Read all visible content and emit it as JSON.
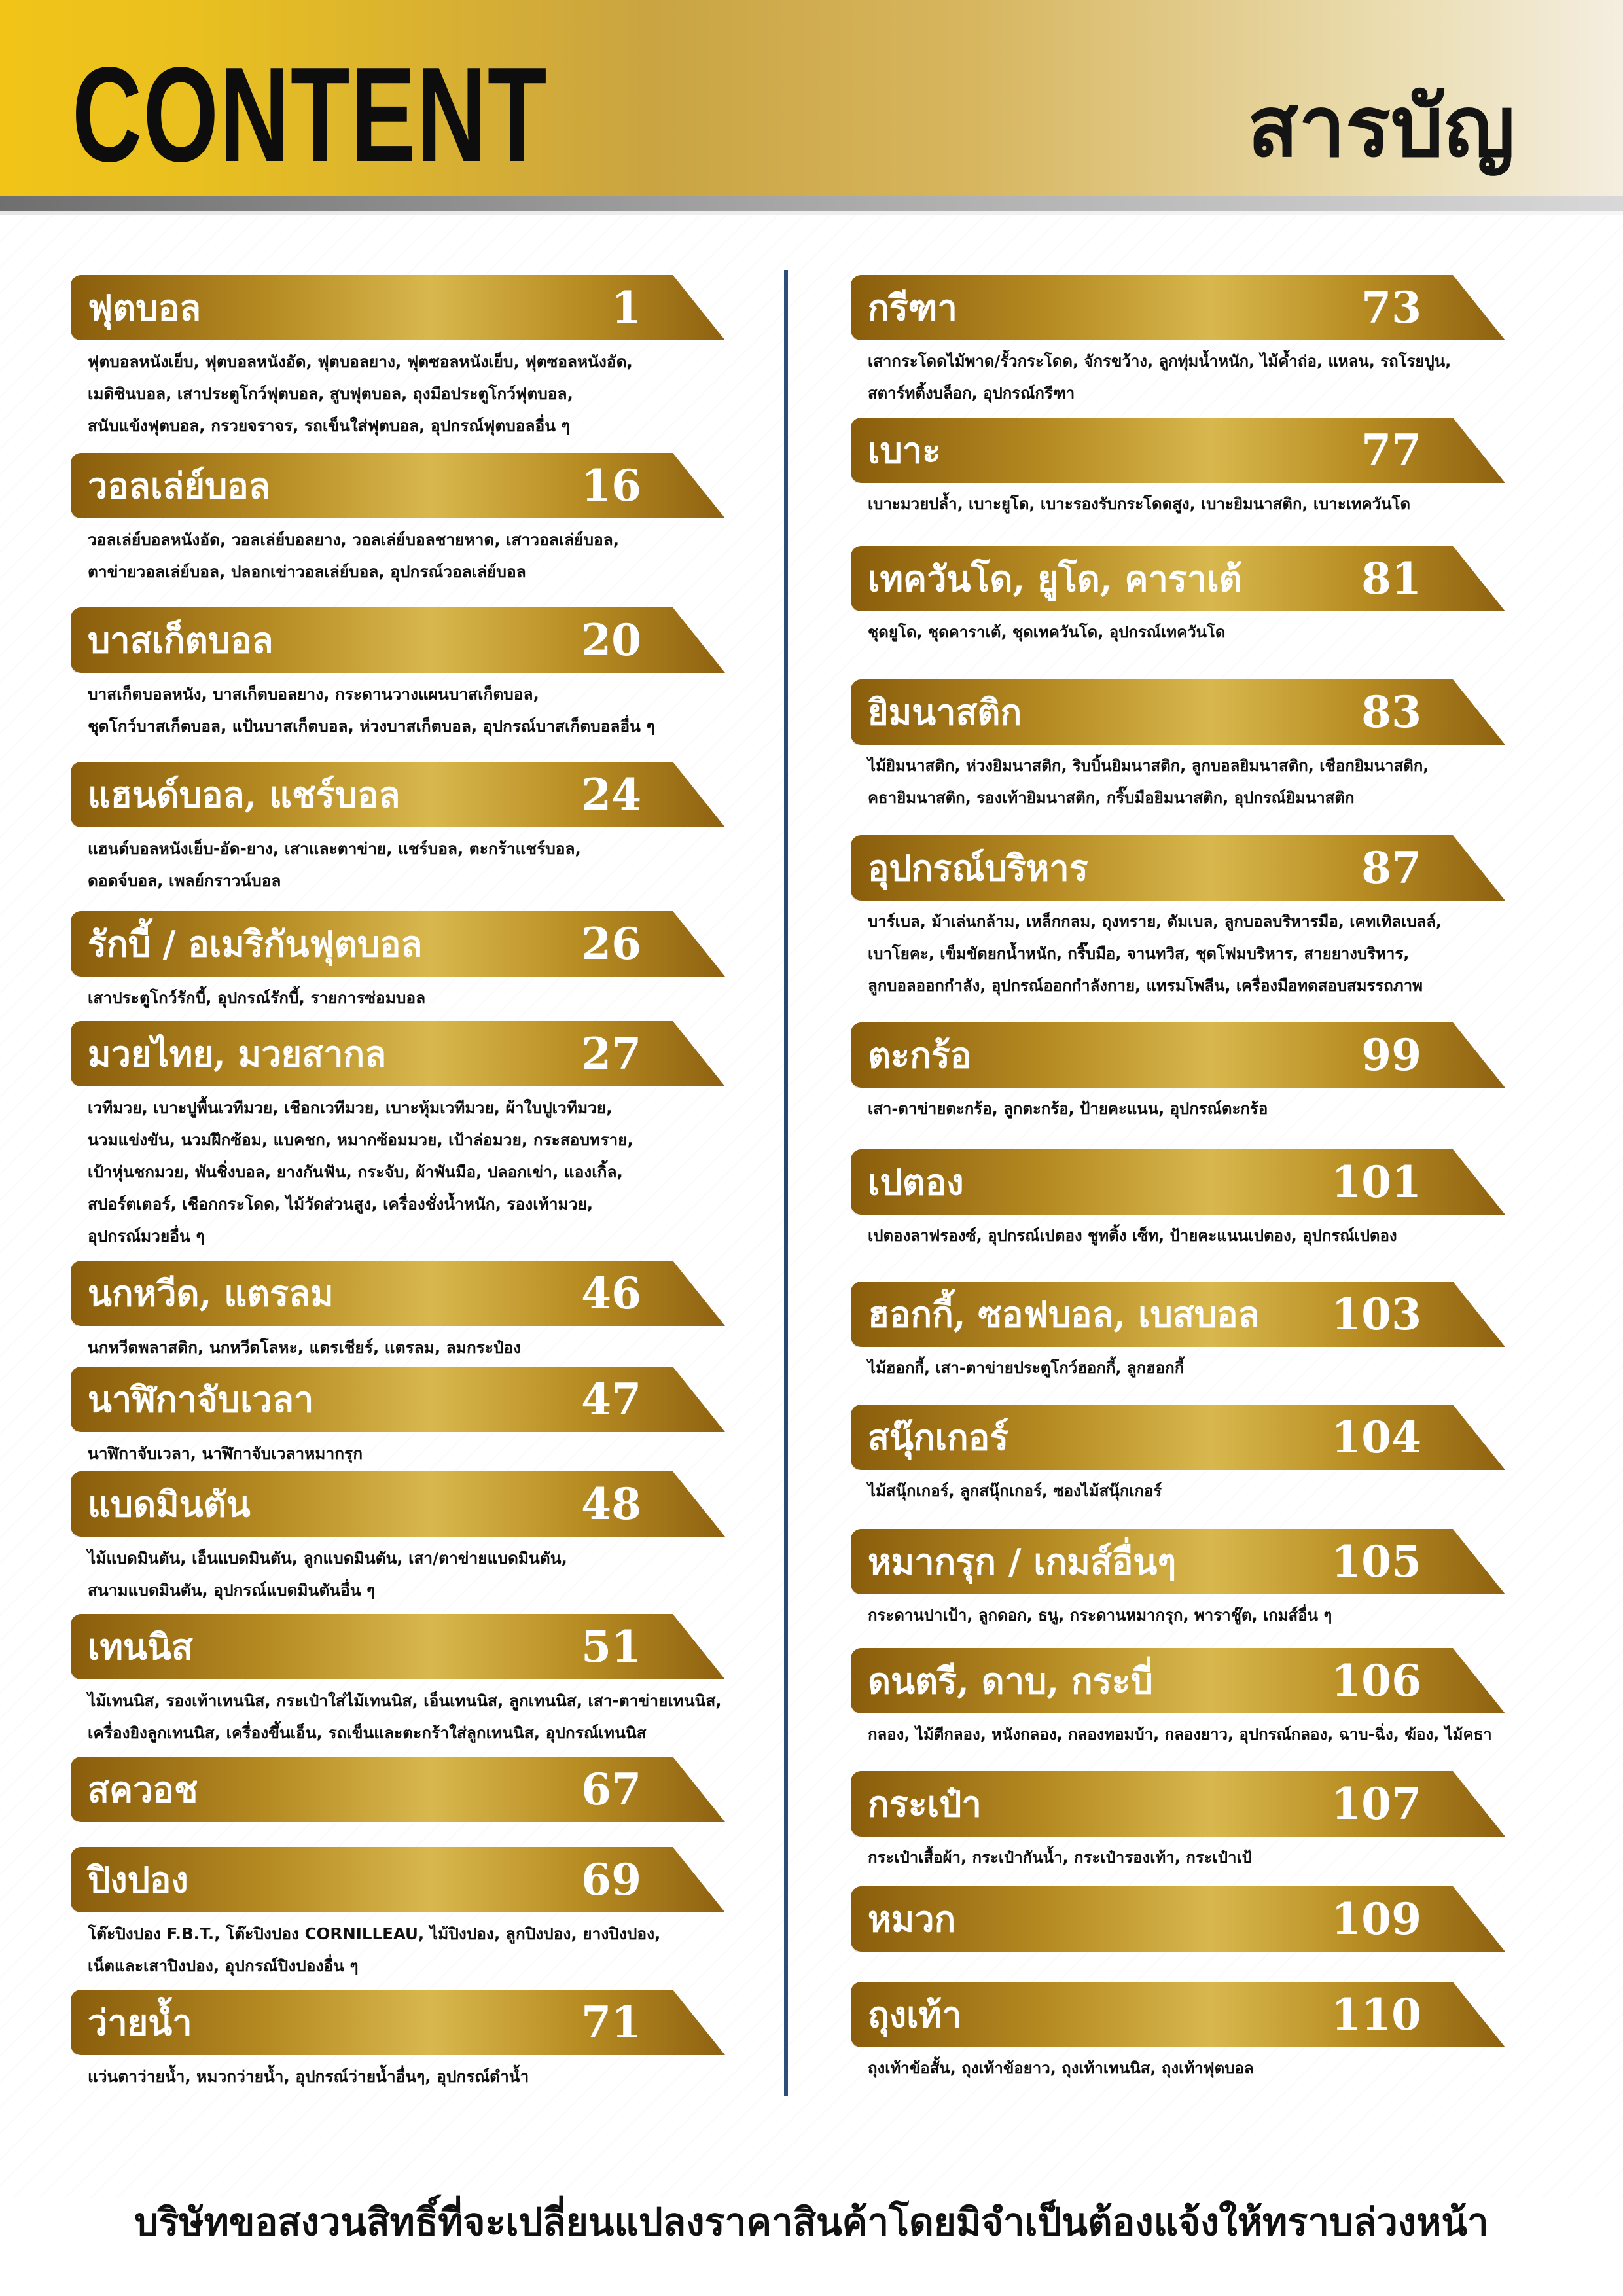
{
  "header": {
    "title_en": "CONTENT",
    "title_th": "สารบัญ",
    "colors": {
      "gold_left": "#f2c418",
      "gold_right": "#f4eee0",
      "banner_gold": "#b58a22",
      "divider": "#2b4f78"
    }
  },
  "left_column": [
    {
      "category": "ฟุตบอล",
      "page": "1",
      "description": "ฟุตบอลหนังเย็บ, ฟุตบอลหนังอัด, ฟุตบอลยาง, ฟุตซอลหนังเย็บ, ฟุตซอลหนังอัด,\nเมดิซินบอล,  เสาประตูโกว์ฟุตบอล, สูบฟุตบอล, ถุงมือประตูโกว์ฟุตบอล,\nสนับแข้งฟุตบอล, กรวยจราจร, รถเข็นใส่ฟุตบอล, อุปกรณ์ฟุตบอลอื่น ๆ"
    },
    {
      "category": "วอลเล่ย์บอล",
      "page": "16",
      "description": "วอลเล่ย์บอลหนังอัด, วอลเล่ย์บอลยาง, วอลเล่ย์บอลชายหาด, เสาวอลเล่ย์บอล,\nตาข่ายวอลเล่ย์บอล, ปลอกเข่าวอลเล่ย์บอล, อุปกรณ์วอลเล่ย์บอล"
    },
    {
      "category": "บาสเก็ตบอล",
      "page": "20",
      "description": "บาสเก็ตบอลหนัง, บาสเก็ตบอลยาง, กระดานวางแผนบาสเก็ตบอล,\nชุดโกว์บาสเก็ตบอล, แป้นบาสเก็ตบอล, ห่วงบาสเก็ตบอล, อุปกรณ์บาสเก็ตบอลอื่น ๆ"
    },
    {
      "category": "แฮนด์บอล, แชร์บอล",
      "page": "24",
      "description": "แฮนด์บอลหนังเย็บ-อัด-ยาง, เสาและตาข่าย, แชร์บอล, ตะกร้าแชร์บอล,\nดอดจ์บอล, เพลย์กราวน์บอล"
    },
    {
      "category": "รักบี้ / อเมริกันฟุตบอล",
      "page": "26",
      "description": "เสาประตูโกว์รักบี้, อุปกรณ์รักบี้, รายการซ่อมบอล"
    },
    {
      "category": "มวยไทย, มวยสากล",
      "page": "27",
      "description": "เวทีมวย, เบาะปูพื้นเวทีมวย, เชือกเวทีมวย, เบาะหุ้มเวทีมวย, ผ้าใบปูเวทีมวย,\nนวมแข่งขัน, นวมฝึกซ้อม, แบคชก, หมากซ้อมมวย, เป้าล่อมวย, กระสอบทราย,\nเป้าหุ่นชกมวย, พันชิ่งบอล, ยางกันฟัน, กระจับ, ผ้าพันมือ, ปลอกเข่า, แองเกิ้ล,\nสปอร์ตเตอร์, เชือกกระโดด, ไม้วัดส่วนสูง, เครื่องชั่งน้ำหนัก, รองเท้ามวย,\nอุปกรณ์มวยอื่น ๆ"
    },
    {
      "category": "นกหวีด, แตรลม",
      "page": "46",
      "description": "นกหวีดพลาสติก, นกหวีดโลหะ, แตรเชียร์, แตรลม, ลมกระป๋อง"
    },
    {
      "category": "นาฬิกาจับเวลา",
      "page": "47",
      "description": "นาฬิกาจับเวลา, นาฬิกาจับเวลาหมากรุก"
    },
    {
      "category": "แบดมินตัน",
      "page": "48",
      "description": "ไม้แบดมินตัน, เอ็นแบดมินตัน, ลูกแบดมินตัน, เสา/ตาข่ายแบดมินตัน,\nสนามแบดมินตัน, อุปกรณ์แบดมินตันอื่น ๆ"
    },
    {
      "category": "เทนนิส",
      "page": "51",
      "description": "ไม้เทนนิส, รองเท้าเทนนิส, กระเป๋าใส่ไม้เทนนิส, เอ็นเทนนิส, ลูกเทนนิส, เสา-ตาข่ายเทนนิส,\nเครื่องยิงลูกเทนนิส, เครื่องขึ้นเอ็น, รถเข็นและตะกร้าใส่ลูกเทนนิส, อุปกรณ์เทนนิส"
    },
    {
      "category": "สควอช",
      "page": "67",
      "description": ""
    },
    {
      "category": "ปิงปอง",
      "page": "69",
      "description": "โต๊ะปิงปอง F.B.T., โต๊ะปิงปอง CORNILLEAU, ไม้ปิงปอง, ลูกปิงปอง, ยางปิงปอง,\nเน็ตและเสาปิงปอง, อุปกรณ์ปิงปองอื่น ๆ"
    },
    {
      "category": "ว่ายน้ำ",
      "page": "71",
      "description": "แว่นตาว่ายน้ำ, หมวกว่ายน้ำ, อุปกรณ์ว่ายน้ำอื่นๆ, อุปกรณ์ดำน้ำ"
    }
  ],
  "right_column": [
    {
      "category": "กรีฑา",
      "page": "73",
      "description": "เสากระโดดไม้พาด/รั้วกระโดด, จักรขว้าง, ลูกทุ่มน้ำหนัก, ไม้ค้ำถ่อ, แหลน, รถโรยปูน,\nสตาร์ทติ้งบล็อก, อุปกรณ์กรีฑา"
    },
    {
      "category": "เบาะ",
      "page": "77",
      "description": "เบาะมวยปล้ำ, เบาะยูโด, เบาะรองรับกระโดดสูง, เบาะยิมนาสติก, เบาะเทควันโด"
    },
    {
      "category": "เทควันโด, ยูโด, คาราเต้",
      "page": "81",
      "description": "ชุดยูโด, ชุดคาราเต้, ชุดเทควันโด, อุปกรณ์เทควันโด"
    },
    {
      "category": "ยิมนาสติก",
      "page": "83",
      "description": "ไม้ยิมนาสติก, ห่วงยิมนาสติก, ริบบิ้นยิมนาสติก, ลูกบอลยิมนาสติก, เชือกยิมนาสติก,\nคธายิมนาสติก, รองเท้ายิมนาสติก, กริ๊บมือยิมนาสติก, อุปกรณ์ยิมนาสติก"
    },
    {
      "category": "อุปกรณ์บริหาร",
      "page": "87",
      "description": "บาร์เบล, ม้าเล่นกล้าม, เหล็กกลม, ถุงทราย, ดัมเบล, ลูกบอลบริหารมือ, เคทเทิลเบลล์,\nเบาโยคะ, เข็มขัดยกน้ำหนัก, กริ๊บมือ, จานทวิส, ชุดโฟมบริหาร, สายยางบริหาร,\nลูกบอลออกกำลัง, อุปกรณ์ออกกำลังกาย, แทรมโพลีน, เครื่องมือทดสอบสมรรถภาพ"
    },
    {
      "category": "ตะกร้อ",
      "page": "99",
      "description": "เสา-ตาข่ายตะกร้อ, ลูกตะกร้อ, ป้ายคะแนน, อุปกรณ์ตะกร้อ"
    },
    {
      "category": "เปตอง",
      "page": "101",
      "description": "เปตองลาฟรองซ์, อุปกรณ์เปตอง ชูทติ้ง เซ็ท, ป้ายคะแนนเปตอง, อุปกรณ์เปตอง"
    },
    {
      "category": "ฮอกกี้, ซอฟบอล, เบสบอล",
      "page": "103",
      "description": "ไม้ฮอกกี้, เสา-ตาข่ายประตูโกว์ฮอกกี้, ลูกฮอกกี้"
    },
    {
      "category": "สนุ๊กเกอร์",
      "page": "104",
      "description": "ไม้สนุ๊กเกอร์, ลูกสนุ๊กเกอร์, ซองไม้สนุ๊กเกอร์"
    },
    {
      "category": "หมากรุก / เกมส์อื่นๆ",
      "page": "105",
      "description": "กระดานปาเป้า, ลูกดอก, ธนู, กระดานหมากรุก, พาราชู๊ต, เกมส์อื่น ๆ"
    },
    {
      "category": "ดนตรี, ดาบ, กระบี่",
      "page": "106",
      "description": "กลอง, ไม้ตีกลอง, หนังกลอง, กลองทอมบ้า, กลองยาว, อุปกรณ์กลอง, ฉาบ-ฉิ่ง, ฆ้อง, ไม้คธา"
    },
    {
      "category": "กระเป๋า",
      "page": "107",
      "description": "กระเป๋าเสื้อผ้า, กระเป๋ากันน้ำ, กระเป๋ารองเท้า, กระเป๋าเป้"
    },
    {
      "category": "หมวก",
      "page": "109",
      "description": ""
    },
    {
      "category": "ถุงเท้า",
      "page": "110",
      "description": "ถุงเท้าข้อสั้น, ถุงเท้าข้อยาว, ถุงเท้าเทนนิส, ถุงเท้าฟุตบอล"
    }
  ],
  "footer": {
    "notice": "บริษัทขอสงวนสิทธิ์ที่จะเปลี่ยนแปลงราคาสินค้าโดยมิจำเป็นต้องแจ้งให้ทราบล่วงหน้า"
  }
}
